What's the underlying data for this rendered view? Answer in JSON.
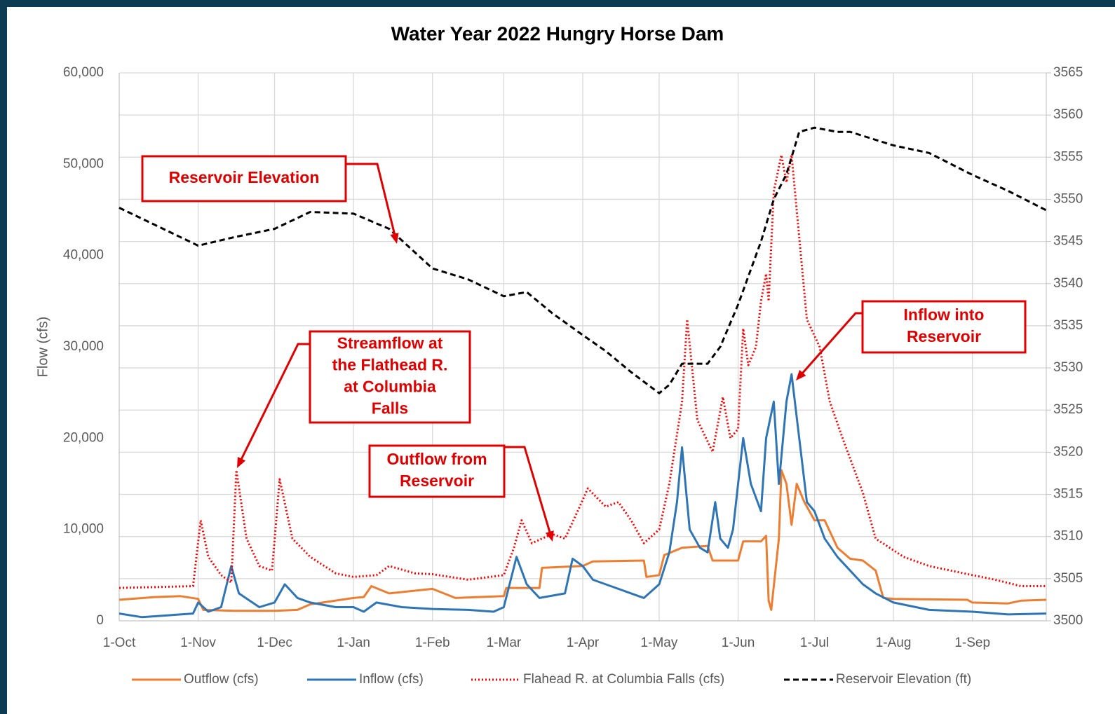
{
  "chart_data": {
    "type": "line",
    "title": "Water Year 2022 Hungry Horse Dam",
    "y_label": "Flow (cfs)",
    "xlim": [
      0,
      364
    ],
    "xticks": [
      {
        "value": 0,
        "label": "1-Oct"
      },
      {
        "value": 31,
        "label": "1-Nov"
      },
      {
        "value": 61,
        "label": "1-Dec"
      },
      {
        "value": 92,
        "label": "1-Jan"
      },
      {
        "value": 123,
        "label": "1-Feb"
      },
      {
        "value": 151,
        "label": "1-Mar"
      },
      {
        "value": 182,
        "label": "1-Apr"
      },
      {
        "value": 212,
        "label": "1-May"
      },
      {
        "value": 243,
        "label": "1-Jun"
      },
      {
        "value": 273,
        "label": "1-Jul"
      },
      {
        "value": 304,
        "label": "1-Aug"
      },
      {
        "value": 335,
        "label": "1-Sep"
      }
    ],
    "ylim": [
      0,
      60000
    ],
    "yticks": [
      0,
      {
        "value": 10000,
        "label": "10,000"
      },
      {
        "value": 20000,
        "label": "20,000"
      },
      {
        "value": 30000,
        "label": "30,000"
      },
      {
        "value": 40000,
        "label": "40,000"
      },
      {
        "value": 50000,
        "label": "50,000"
      },
      {
        "value": 60000,
        "label": "60,000"
      }
    ],
    "y2lim": [
      3500,
      3565
    ],
    "y2ticks": [
      3500,
      3505,
      3510,
      3515,
      3520,
      3525,
      3530,
      3535,
      3540,
      3545,
      3550,
      3555,
      3560,
      3565
    ],
    "grid": "y2",
    "legend": "bottom",
    "series": [
      {
        "name": "Outflow (cfs)",
        "color": "#ed7d31",
        "line_style": "solid",
        "x": [
          0,
          14,
          24,
          31,
          33,
          45,
          61,
          70,
          75,
          92,
          96,
          99,
          106,
          123,
          132,
          151,
          152,
          165,
          166,
          182,
          186,
          206,
          207,
          212,
          214,
          221,
          231,
          233,
          243,
          245,
          252,
          254,
          255,
          256,
          259,
          260,
          262,
          264,
          266,
          269,
          273,
          277,
          282,
          287,
          292,
          297,
          300,
          304,
          333,
          335,
          349,
          354,
          364
        ],
        "values": [
          2300,
          2600,
          2700,
          2400,
          1200,
          1100,
          1100,
          1200,
          1800,
          2500,
          2600,
          3800,
          3000,
          3500,
          2500,
          2700,
          3600,
          3600,
          5800,
          6000,
          6500,
          6600,
          4800,
          5000,
          7200,
          8000,
          8200,
          6600,
          6600,
          8700,
          8700,
          9300,
          2200,
          1200,
          9000,
          16500,
          15000,
          10500,
          15000,
          13000,
          11000,
          11000,
          8000,
          6800,
          6600,
          5500,
          2500,
          2400,
          2300,
          2000,
          1900,
          2200,
          2300
        ]
      },
      {
        "name": "Inflow (cfs)",
        "color": "#2e75b6",
        "line_style": "solid",
        "x": [
          0,
          9,
          19,
          29,
          31,
          35,
          40,
          44,
          47,
          55,
          61,
          65,
          70,
          75,
          85,
          92,
          96,
          101,
          111,
          123,
          137,
          147,
          151,
          156,
          160,
          165,
          175,
          178,
          182,
          186,
          196,
          206,
          212,
          216,
          219,
          221,
          224,
          228,
          231,
          234,
          236,
          239,
          241,
          245,
          248,
          252,
          254,
          257,
          259,
          262,
          264,
          267,
          270,
          273,
          277,
          282,
          287,
          292,
          297,
          304,
          318,
          335,
          349,
          364
        ],
        "values": [
          800,
          400,
          600,
          800,
          2000,
          1000,
          1500,
          6000,
          3000,
          1500,
          2000,
          4000,
          2500,
          2000,
          1500,
          1500,
          1000,
          2000,
          1500,
          1300,
          1200,
          1000,
          1500,
          7000,
          4000,
          2500,
          3000,
          6800,
          6000,
          4500,
          3500,
          2500,
          4000,
          7500,
          13000,
          19000,
          10000,
          8000,
          7500,
          13000,
          9000,
          8000,
          10000,
          20000,
          15000,
          12000,
          20000,
          24000,
          15000,
          24000,
          27000,
          20000,
          13000,
          12000,
          9000,
          7000,
          5500,
          4000,
          3000,
          2000,
          1200,
          1000,
          700,
          800
        ]
      },
      {
        "name": "Flahead R. at Columbia Falls (cfs)",
        "color": "#ff0000",
        "line_style": "dotted",
        "x": [
          0,
          29,
          32,
          35,
          40,
          44,
          46,
          50,
          55,
          60,
          63,
          68,
          75,
          85,
          92,
          101,
          106,
          116,
          123,
          137,
          151,
          155,
          158,
          162,
          170,
          175,
          180,
          184,
          191,
          196,
          201,
          206,
          212,
          216,
          221,
          223,
          227,
          233,
          237,
          240,
          243,
          245,
          247,
          250,
          252,
          254,
          255,
          257,
          260,
          262,
          264,
          267,
          270,
          275,
          279,
          284,
          292,
          297,
          308,
          318,
          335,
          344,
          354,
          364
        ],
        "values": [
          3600,
          3800,
          11000,
          7000,
          5000,
          4200,
          16500,
          9000,
          6000,
          5500,
          15500,
          9000,
          7000,
          5200,
          4800,
          5000,
          6000,
          5200,
          5100,
          4500,
          5000,
          8000,
          11000,
          8500,
          9500,
          9000,
          12000,
          14500,
          12500,
          13000,
          11000,
          8500,
          10000,
          15000,
          24000,
          33000,
          22000,
          18500,
          24500,
          20000,
          21000,
          32000,
          28000,
          30000,
          35000,
          38000,
          35000,
          47000,
          51000,
          48000,
          51000,
          42000,
          33000,
          30000,
          24000,
          20000,
          14000,
          9000,
          7000,
          6000,
          5000,
          4500,
          3800,
          3800
        ]
      },
      {
        "name": "Reservoir Elevation (ft)",
        "color": "#000000",
        "line_style": "dashed",
        "axis": "y2",
        "x": [
          0,
          31,
          45,
          61,
          75,
          92,
          106,
          123,
          137,
          151,
          160,
          170,
          182,
          191,
          201,
          212,
          216,
          221,
          231,
          236,
          243,
          252,
          257,
          262,
          267,
          273,
          282,
          287,
          304,
          318,
          335,
          349,
          364
        ],
        "values": [
          3549,
          3544.5,
          3545.5,
          3546.5,
          3548.5,
          3548.3,
          3546.5,
          3541.8,
          3540.5,
          3538.5,
          3539,
          3536.5,
          3533.9,
          3532,
          3529.5,
          3527,
          3528,
          3530.5,
          3530.5,
          3532.5,
          3537.5,
          3545,
          3550,
          3553,
          3558,
          3558.5,
          3558,
          3558,
          3556.4,
          3555.5,
          3552.9,
          3551,
          3548.7
        ]
      }
    ],
    "annotations": [
      {
        "lines": [
          "Reservoir Elevation"
        ]
      },
      {
        "lines": [
          "Streamflow at",
          "the Flathead R.",
          "at Columbia",
          "Falls"
        ]
      },
      {
        "lines": [
          "Outflow from",
          "Reservoir"
        ]
      },
      {
        "lines": [
          "Inflow into",
          "Reservoir"
        ]
      }
    ]
  }
}
